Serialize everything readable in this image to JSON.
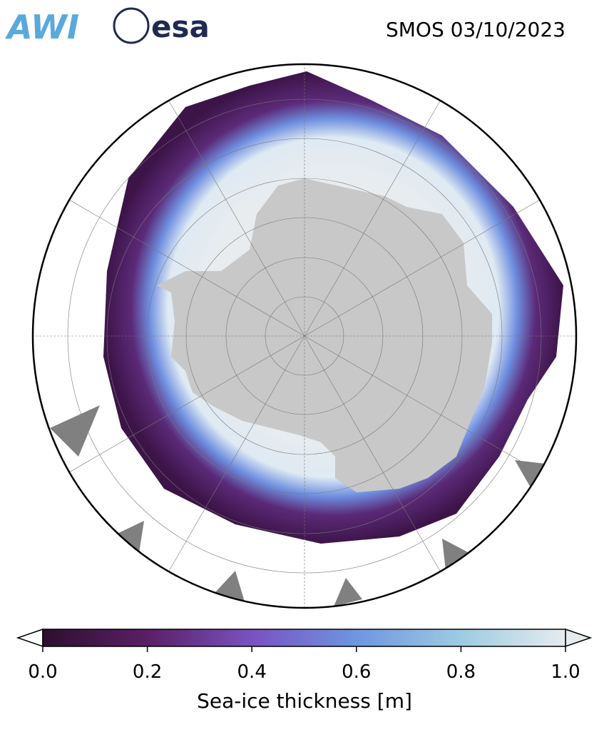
{
  "header": {
    "logos": [
      "AWI",
      "esa"
    ],
    "title": "SMOS 03/10/2023"
  },
  "colorbar": {
    "type": "colorbar",
    "label": "Sea-ice thickness [m]",
    "xlim": [
      0,
      1
    ],
    "xticks": [
      {
        "value": 0,
        "label": "0.0"
      },
      0.2,
      0.4,
      0.6,
      0.8,
      {
        "value": 1,
        "label": "1.0"
      }
    ],
    "colors": [
      "#2e0f30",
      "#5a1f66",
      "#7a52c0",
      "#6d96e0",
      "#9dcbe2",
      "#e6ecee"
    ]
  }
}
